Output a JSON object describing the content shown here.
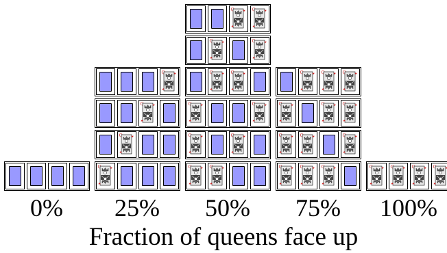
{
  "figure": {
    "xlabel": "Fraction of queens face up",
    "columns": [
      {
        "label": "0%",
        "rows": [
          [
            "down",
            "down",
            "down",
            "down"
          ]
        ]
      },
      {
        "label": "25%",
        "rows": [
          [
            "up",
            "down",
            "down",
            "down"
          ],
          [
            "down",
            "up",
            "down",
            "down"
          ],
          [
            "down",
            "down",
            "up",
            "down"
          ],
          [
            "down",
            "down",
            "down",
            "up"
          ]
        ]
      },
      {
        "label": "50%",
        "rows": [
          [
            "up",
            "up",
            "down",
            "down"
          ],
          [
            "up",
            "down",
            "up",
            "down"
          ],
          [
            "up",
            "down",
            "down",
            "up"
          ],
          [
            "down",
            "up",
            "up",
            "down"
          ],
          [
            "down",
            "up",
            "down",
            "up"
          ],
          [
            "down",
            "down",
            "up",
            "up"
          ]
        ]
      },
      {
        "label": "75%",
        "rows": [
          [
            "up",
            "up",
            "up",
            "down"
          ],
          [
            "up",
            "up",
            "down",
            "up"
          ],
          [
            "up",
            "down",
            "up",
            "up"
          ],
          [
            "down",
            "up",
            "up",
            "up"
          ]
        ]
      },
      {
        "label": "100%",
        "rows": [
          [
            "up",
            "up",
            "up",
            "up"
          ]
        ]
      }
    ],
    "colors": {
      "card_back": "#9999ff",
      "queen_red": "#cc2222",
      "outline": "#000000"
    },
    "icons": {
      "face_up": "queen-of-hearts-icon",
      "face_down": "card-back-icon"
    }
  }
}
